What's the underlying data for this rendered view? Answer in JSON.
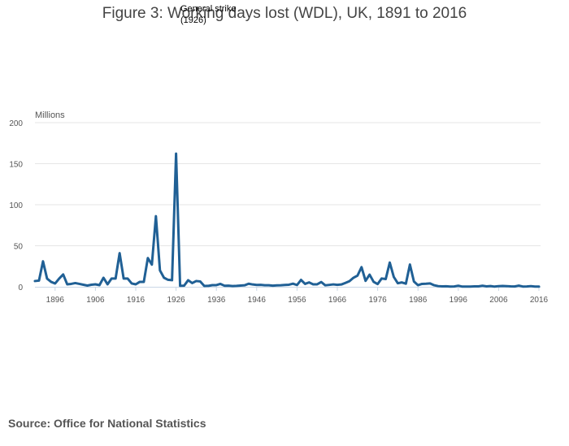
{
  "chart_data": {
    "type": "line",
    "title": "Figure 3: Working days lost (WDL), UK, 1891 to 2016",
    "ylabel": "Millions",
    "xlabel": "",
    "source": "Source: Office for National Statistics",
    "annotation": {
      "line1": "General strike",
      "line2": "(1926)",
      "x": 1926,
      "y": 162.2
    },
    "xlim": [
      1891,
      2016
    ],
    "ylim": [
      0,
      200
    ],
    "yticks": [
      0,
      50,
      100,
      150,
      200
    ],
    "xticks": [
      1896,
      1906,
      1916,
      1926,
      1936,
      1946,
      1956,
      1966,
      1976,
      1986,
      1996,
      2006,
      2016
    ],
    "grid": true,
    "colors": {
      "line": "#206095",
      "grid": "#e6e6e6",
      "axis": "#c9d7e6"
    },
    "series": [
      {
        "name": "",
        "x": [
          1891,
          1892,
          1893,
          1894,
          1895,
          1896,
          1897,
          1898,
          1899,
          1900,
          1901,
          1902,
          1903,
          1904,
          1905,
          1906,
          1907,
          1908,
          1909,
          1910,
          1911,
          1912,
          1913,
          1914,
          1915,
          1916,
          1917,
          1918,
          1919,
          1920,
          1921,
          1922,
          1923,
          1924,
          1925,
          1926,
          1927,
          1928,
          1929,
          1930,
          1931,
          1932,
          1933,
          1934,
          1935,
          1936,
          1937,
          1938,
          1939,
          1940,
          1941,
          1942,
          1943,
          1944,
          1945,
          1946,
          1947,
          1948,
          1949,
          1950,
          1951,
          1952,
          1953,
          1954,
          1955,
          1956,
          1957,
          1958,
          1959,
          1960,
          1961,
          1962,
          1963,
          1964,
          1965,
          1966,
          1967,
          1968,
          1969,
          1970,
          1971,
          1972,
          1973,
          1974,
          1975,
          1976,
          1977,
          1978,
          1979,
          1980,
          1981,
          1982,
          1983,
          1984,
          1985,
          1986,
          1987,
          1988,
          1989,
          1990,
          1991,
          1992,
          1993,
          1994,
          1995,
          1996,
          1997,
          1998,
          1999,
          2000,
          2001,
          2002,
          2003,
          2004,
          2005,
          2006,
          2007,
          2008,
          2009,
          2010,
          2011,
          2012,
          2013,
          2014,
          2015,
          2016
        ],
        "values": [
          7,
          7.5,
          31,
          10,
          6,
          4,
          10,
          15,
          3,
          3.5,
          4.5,
          3.5,
          2.5,
          1.5,
          2.5,
          3,
          2,
          11,
          3,
          10,
          10,
          41,
          10,
          10,
          4,
          3,
          6,
          6,
          35,
          27,
          86,
          20,
          11,
          8.5,
          8,
          162.2,
          1.2,
          1.4,
          8,
          4.5,
          7,
          6.5,
          1,
          1.1,
          2,
          2,
          3.5,
          1.3,
          1.4,
          0.9,
          1.1,
          1.5,
          1.8,
          3.7,
          2.8,
          2.2,
          2.4,
          1.9,
          1.8,
          1.4,
          1.7,
          1.8,
          2.2,
          2.5,
          3.8,
          2.1,
          8.4,
          3.5,
          5.3,
          3,
          3,
          5.8,
          1.8,
          2.3,
          2.9,
          2.4,
          2.8,
          4.7,
          6.8,
          11,
          13.6,
          23.9,
          7.2,
          14.8,
          6,
          3.3,
          10.1,
          9.4,
          29.5,
          12,
          4.3,
          5.3,
          3.8,
          27.1,
          6.4,
          1.9,
          3.5,
          3.7,
          4.1,
          1.9,
          0.8,
          0.5,
          0.6,
          0.3,
          0.4,
          1.3,
          0.2,
          0.3,
          0.2,
          0.5,
          0.5,
          1.3,
          0.5,
          0.9,
          0.2,
          0.8,
          1,
          0.8,
          0.5,
          0.4,
          1.4,
          0.3,
          0.4,
          0.8,
          0.2,
          0.3
        ]
      }
    ]
  }
}
